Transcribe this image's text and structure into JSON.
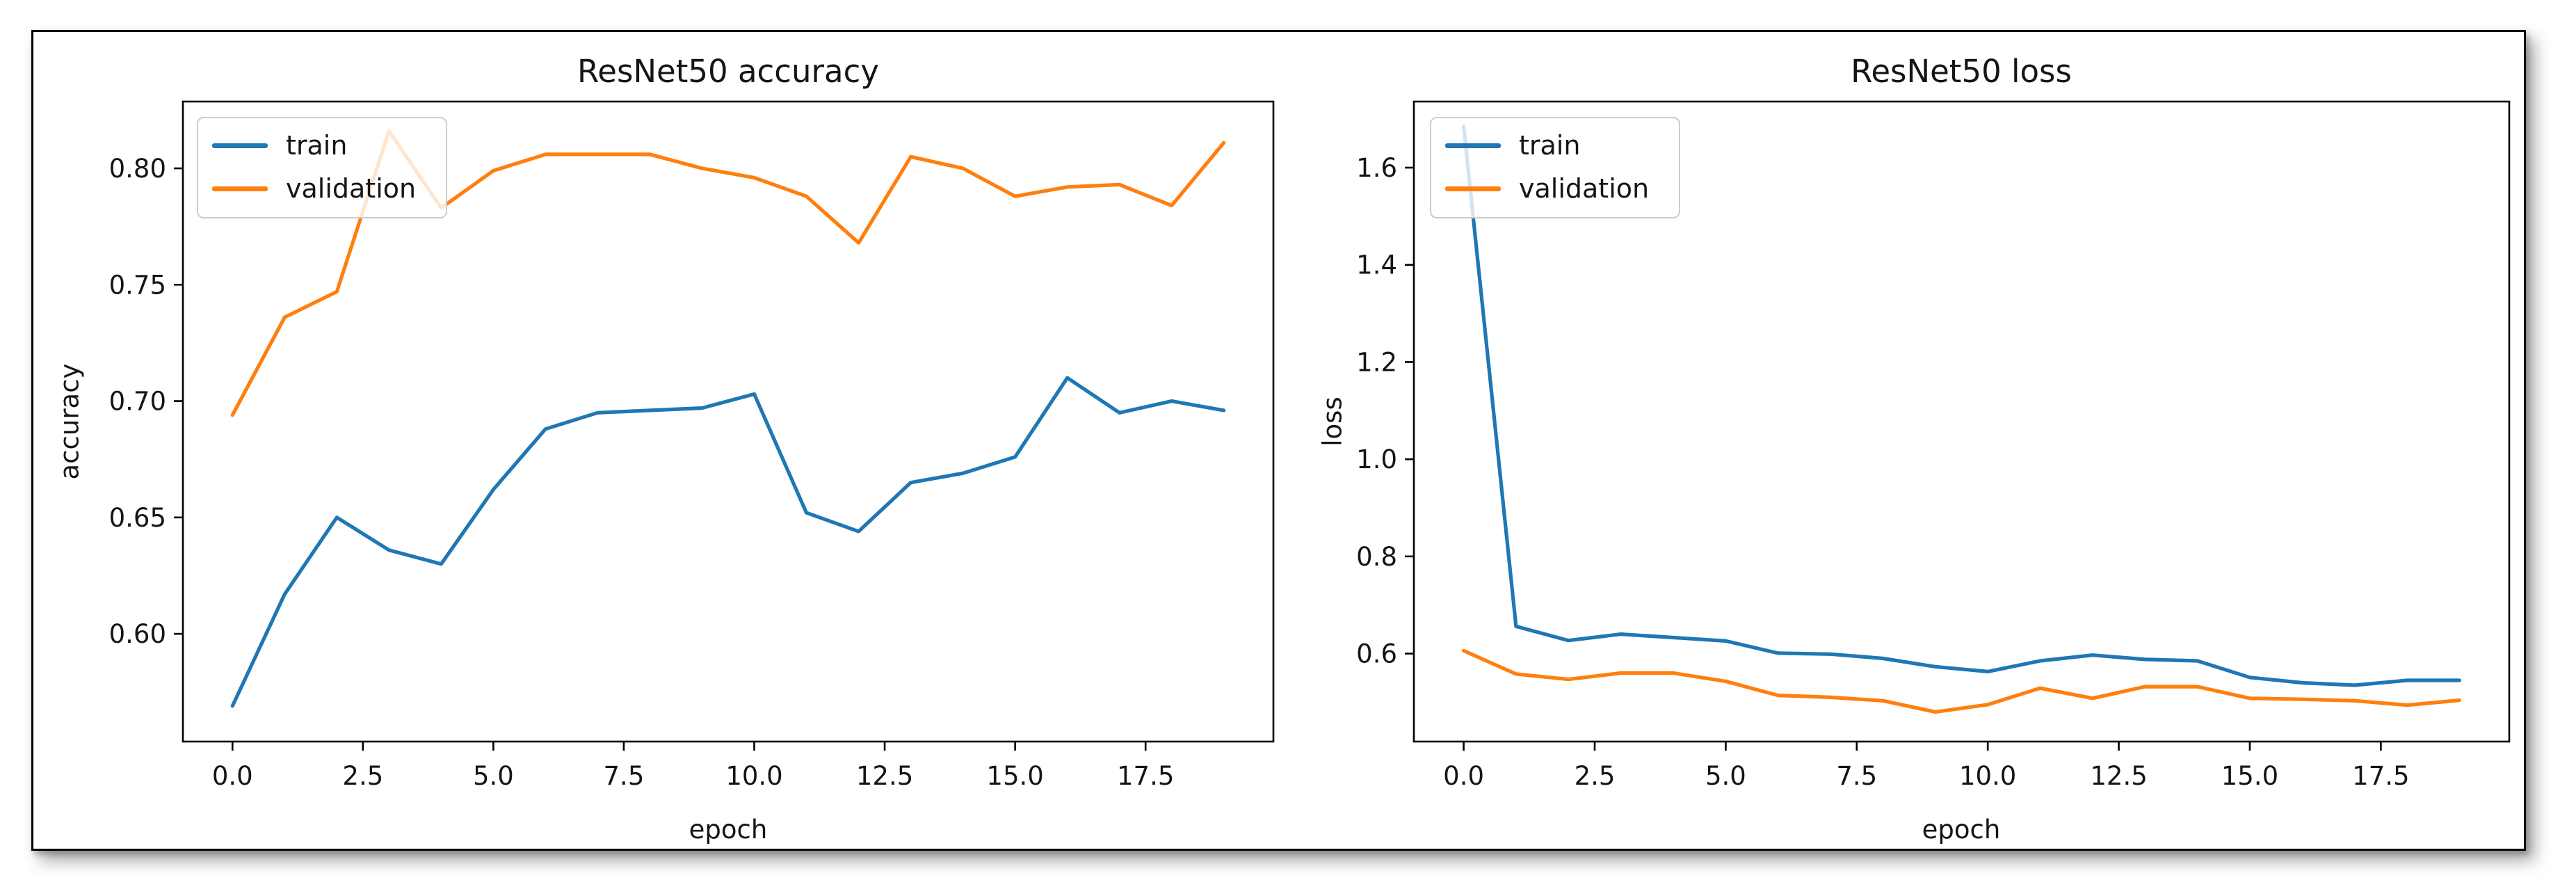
{
  "figure": {
    "series_colors": {
      "train": "#1f77b4",
      "validation": "#ff7f0e"
    },
    "text_color": "#151515",
    "spine_color": "#000000"
  },
  "chart_data": [
    {
      "type": "line",
      "title": "ResNet50 accuracy",
      "xlabel": "epoch",
      "ylabel": "accuracy",
      "x": [
        0,
        1,
        2,
        3,
        4,
        5,
        6,
        7,
        8,
        9,
        10,
        11,
        12,
        13,
        14,
        15,
        16,
        17,
        18,
        19
      ],
      "series": [
        {
          "name": "train",
          "values": [
            0.569,
            0.617,
            0.65,
            0.636,
            0.63,
            0.662,
            0.688,
            0.695,
            0.696,
            0.697,
            0.703,
            0.652,
            0.644,
            0.665,
            0.669,
            0.676,
            0.71,
            0.695,
            0.7,
            0.696
          ]
        },
        {
          "name": "validation",
          "values": [
            0.694,
            0.736,
            0.747,
            0.816,
            0.783,
            0.799,
            0.806,
            0.806,
            0.806,
            0.8,
            0.796,
            0.788,
            0.768,
            0.805,
            0.8,
            0.788,
            0.792,
            0.793,
            0.784,
            0.811
          ]
        }
      ],
      "xlim": [
        -0.95,
        19.95
      ],
      "ylim": [
        0.5537,
        0.8287
      ],
      "xticks": {
        "values": [
          0,
          2.5,
          5,
          7.5,
          10,
          12.5,
          15,
          17.5
        ],
        "labels": [
          "0.0",
          "2.5",
          "5.0",
          "7.5",
          "10.0",
          "12.5",
          "15.0",
          "17.5"
        ]
      },
      "yticks": {
        "values": [
          0.6,
          0.65,
          0.7,
          0.75,
          0.8
        ],
        "labels": [
          "0.60",
          "0.65",
          "0.70",
          "0.75",
          "0.80"
        ]
      },
      "legend": {
        "position": "upper left",
        "entries": [
          "train",
          "validation"
        ]
      },
      "grid": false
    },
    {
      "type": "line",
      "title": "ResNet50 loss",
      "xlabel": "epoch",
      "ylabel": "loss",
      "x": [
        0,
        1,
        2,
        3,
        4,
        5,
        6,
        7,
        8,
        9,
        10,
        11,
        12,
        13,
        14,
        15,
        16,
        17,
        18,
        19
      ],
      "series": [
        {
          "name": "train",
          "values": [
            1.685,
            0.656,
            0.627,
            0.64,
            0.633,
            0.626,
            0.601,
            0.599,
            0.59,
            0.573,
            0.563,
            0.585,
            0.597,
            0.588,
            0.585,
            0.551,
            0.54,
            0.535,
            0.545,
            0.545
          ]
        },
        {
          "name": "validation",
          "values": [
            0.606,
            0.558,
            0.547,
            0.56,
            0.56,
            0.543,
            0.514,
            0.51,
            0.503,
            0.48,
            0.495,
            0.529,
            0.508,
            0.532,
            0.532,
            0.508,
            0.506,
            0.503,
            0.494,
            0.504
          ]
        }
      ],
      "xlim": [
        -0.95,
        19.95
      ],
      "ylim": [
        0.419,
        1.736
      ],
      "xticks": {
        "values": [
          0,
          2.5,
          5,
          7.5,
          10,
          12.5,
          15,
          17.5
        ],
        "labels": [
          "0.0",
          "2.5",
          "5.0",
          "7.5",
          "10.0",
          "12.5",
          "15.0",
          "17.5"
        ]
      },
      "yticks": {
        "values": [
          0.6,
          0.8,
          1.0,
          1.2,
          1.4,
          1.6
        ],
        "labels": [
          "0.6",
          "0.8",
          "1.0",
          "1.2",
          "1.4",
          "1.6"
        ]
      },
      "legend": {
        "position": "upper left",
        "entries": [
          "train",
          "validation"
        ]
      },
      "grid": false
    }
  ]
}
